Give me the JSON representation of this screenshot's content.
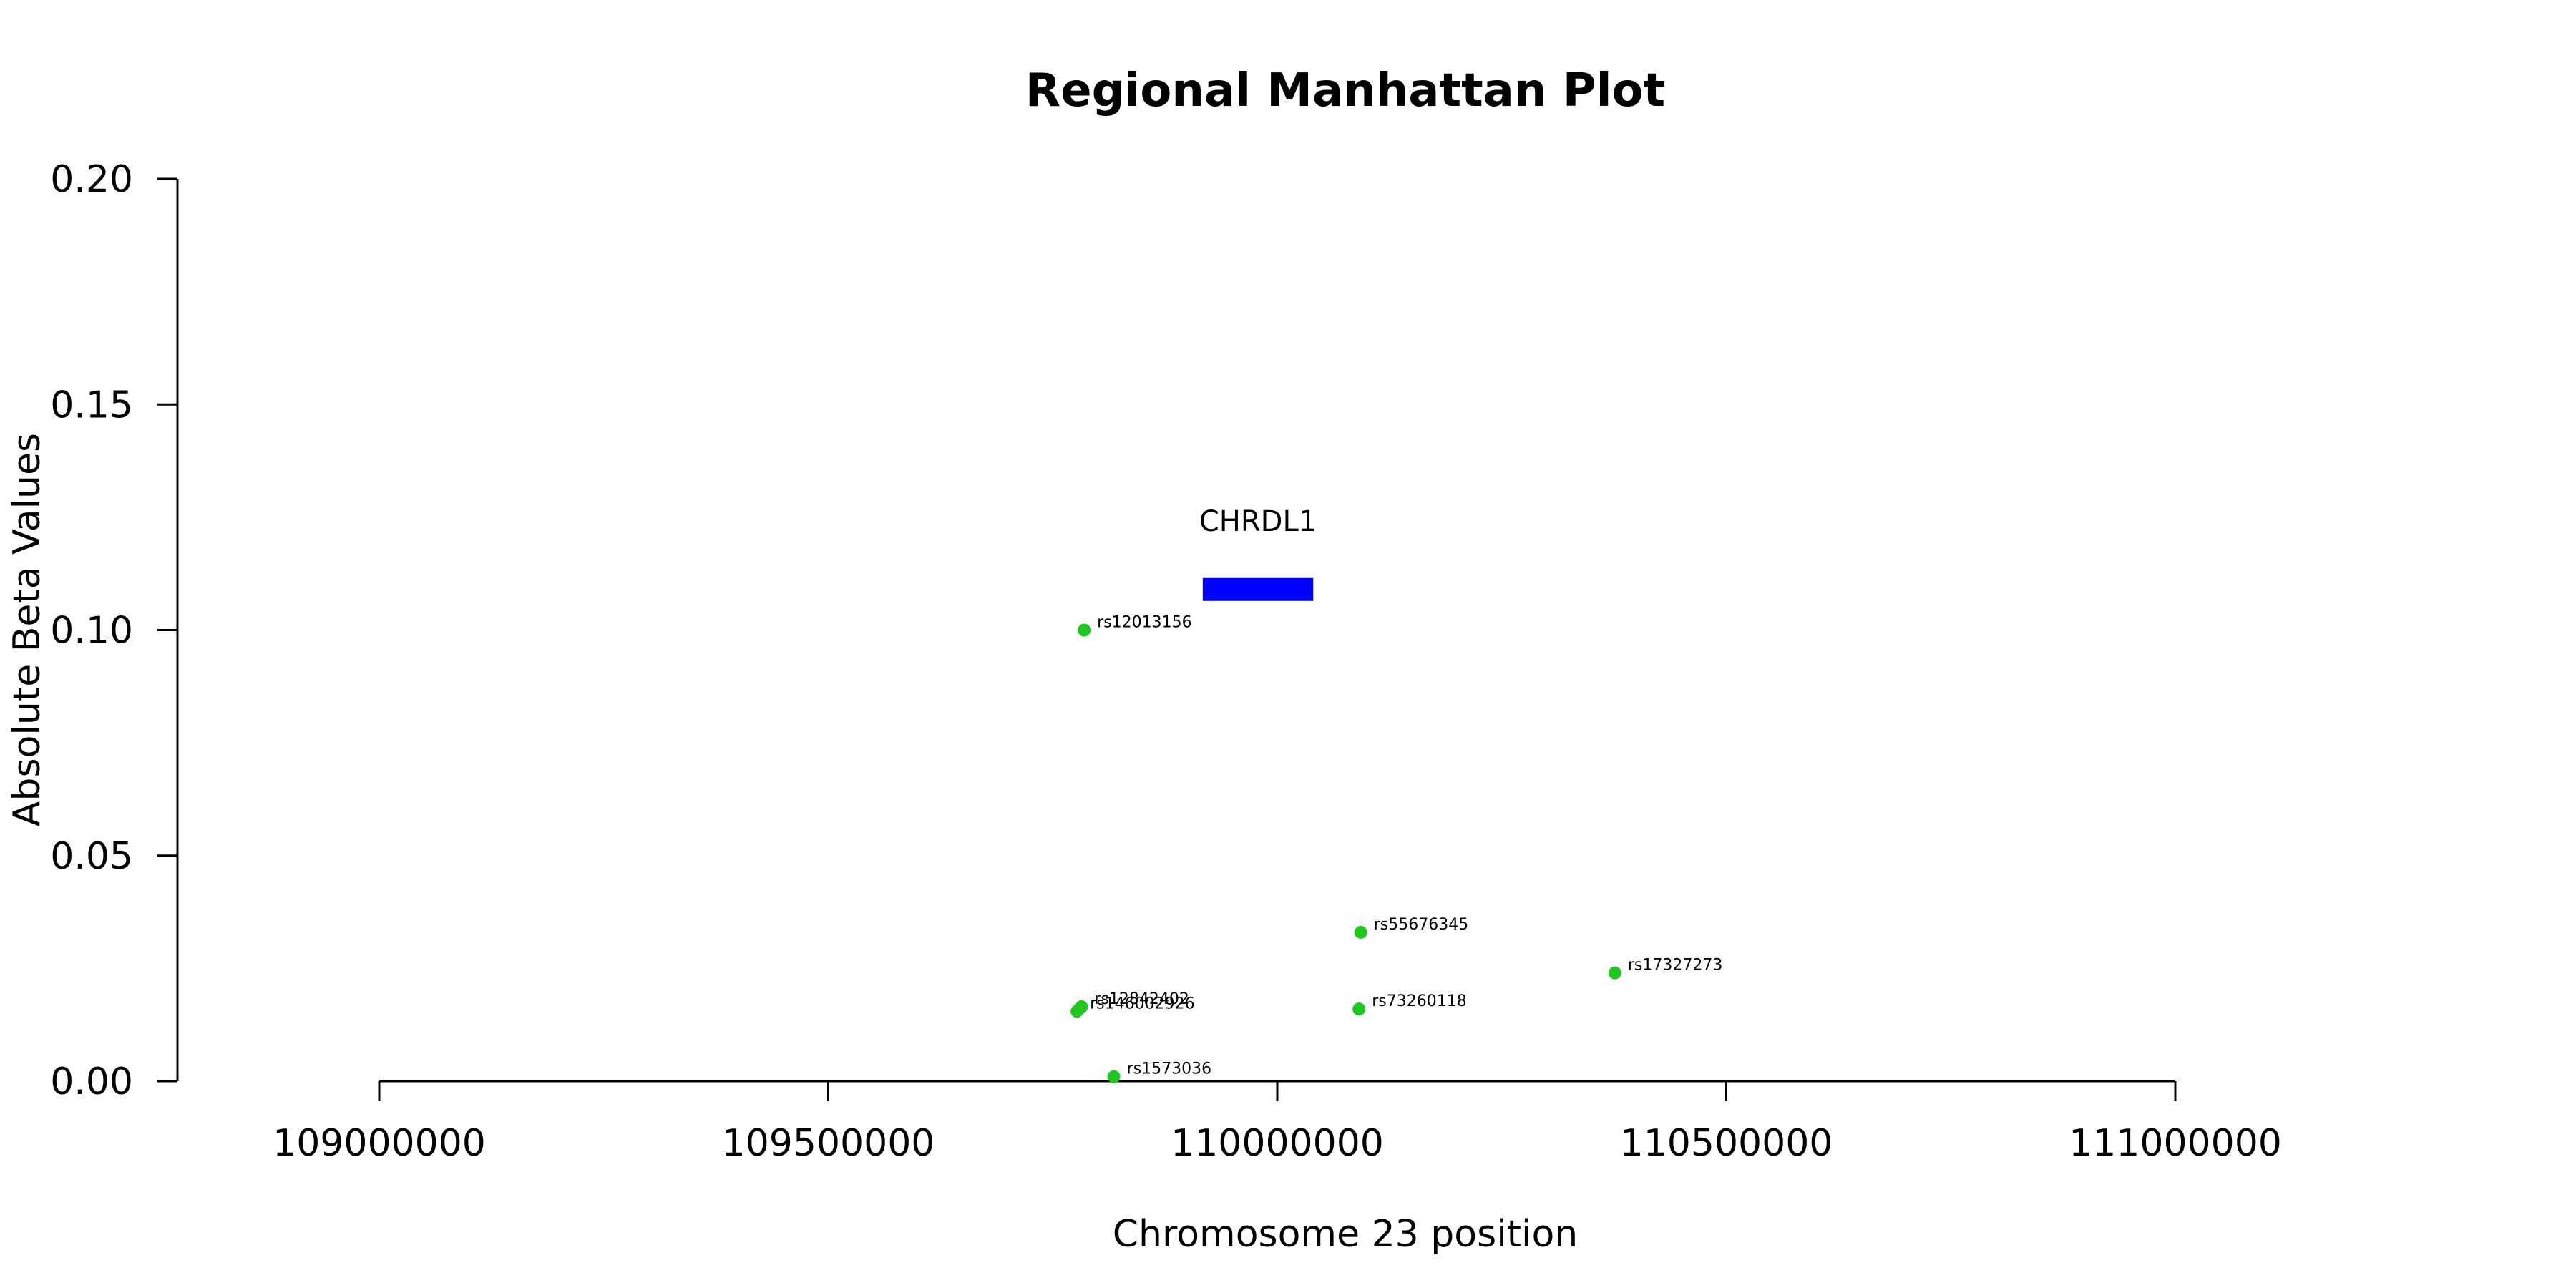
{
  "chart_data": {
    "type": "scatter",
    "title": "Regional Manhattan Plot",
    "xlabel": "Chromosome 23 position",
    "ylabel": "Absolute Beta Values",
    "xlim": [
      109000000,
      111000000
    ],
    "ylim": [
      0,
      0.2
    ],
    "x_ticks": [
      109000000,
      109500000,
      110000000,
      110500000,
      111000000
    ],
    "x_tick_labels": [
      "109000000",
      "109500000",
      "110000000",
      "110500000",
      "111000000"
    ],
    "y_ticks": [
      0,
      0.05,
      0.1,
      0.15,
      0.2
    ],
    "y_tick_labels": [
      "0.00",
      "0.05",
      "0.10",
      "0.15",
      "0.20"
    ],
    "grid": false,
    "point_color": "#1ec81e",
    "points": [
      {
        "label": "rs12013156",
        "x": 109785000,
        "y": 0.1
      },
      {
        "label": "rs55676345",
        "x": 110093000,
        "y": 0.033
      },
      {
        "label": "rs17327273",
        "x": 110376000,
        "y": 0.024
      },
      {
        "label": "rs12842402",
        "x": 109782000,
        "y": 0.0165
      },
      {
        "label": "rs146002926",
        "x": 109777000,
        "y": 0.0155
      },
      {
        "label": "rs73260118",
        "x": 110091000,
        "y": 0.016
      },
      {
        "label": "rs1573036",
        "x": 109818000,
        "y": 0.001
      }
    ],
    "genes": [
      {
        "name": "CHRDL1",
        "start": 109917000,
        "end": 110040000,
        "y": 0.109,
        "color": "#0000ff"
      }
    ]
  }
}
